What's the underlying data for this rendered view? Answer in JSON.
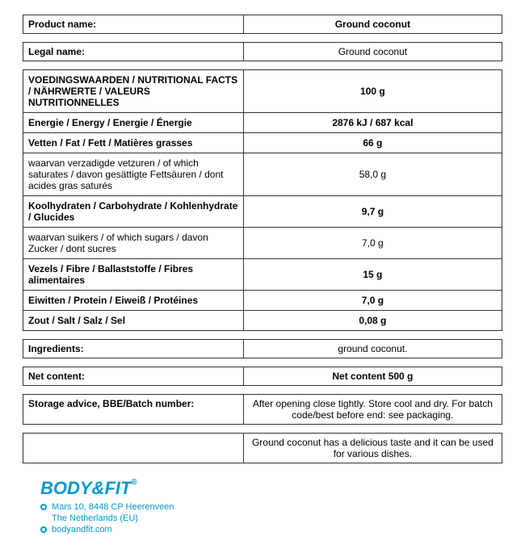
{
  "productName": {
    "label": "Product name:",
    "value": "Ground coconut"
  },
  "legalName": {
    "label": "Legal name:",
    "value": "Ground coconut"
  },
  "nutrition": {
    "header": {
      "label": "VOEDINGSWAARDEN / NUTRITIONAL FACTS / NÄHRWERTE / VALEURS NUTRITIONNELLES",
      "value": "100 g"
    },
    "rows": [
      {
        "label": "Energie / Energy / Energie / Énergie",
        "value": "2876 kJ / 687 kcal",
        "bold": true
      },
      {
        "label": "Vetten / Fat / Fett / Matières grasses",
        "value": "66 g",
        "bold": true
      },
      {
        "label": "waarvan verzadigde vetzuren / of which saturates / davon gesättigte Fettsäuren / dont acides gras saturés",
        "value": "58,0 g",
        "bold": false
      },
      {
        "label": "Koolhydraten / Carbohydrate / Kohlenhydrate / Glucides",
        "value": "9,7 g",
        "bold": true
      },
      {
        "label": "waarvan suikers / of which sugars / davon Zucker / dont sucres",
        "value": "7,0 g",
        "bold": false
      },
      {
        "label": "Vezels / Fibre / Ballaststoffe / Fibres alimentaires",
        "value": "15 g",
        "bold": true
      },
      {
        "label": "Eiwitten / Protein / Eiweiß / Protéines",
        "value": "7,0 g",
        "bold": true
      },
      {
        "label": "Zout / Salt / Salz / Sel",
        "value": "0,08 g",
        "bold": true
      }
    ]
  },
  "ingredients": {
    "label": "Ingredients:",
    "value": "ground coconut."
  },
  "netContent": {
    "label": "Net content:",
    "value": "Net content 500 g"
  },
  "storage": {
    "label": "Storage advice, BBE/Batch number:",
    "value": "After opening close tightly. Store cool and dry. For batch code/best before end: see packaging."
  },
  "description": {
    "value": "Ground coconut has a delicious taste and it can be used for various dishes."
  },
  "brand": {
    "logo": "BODY&FIT",
    "address1": "Mars 10, 8448 CP   Heerenveen",
    "address2": "The Netherlands (EU)",
    "website": "bodyandfit.com"
  },
  "colors": {
    "border": "#333333",
    "brand": "#0099cc"
  }
}
